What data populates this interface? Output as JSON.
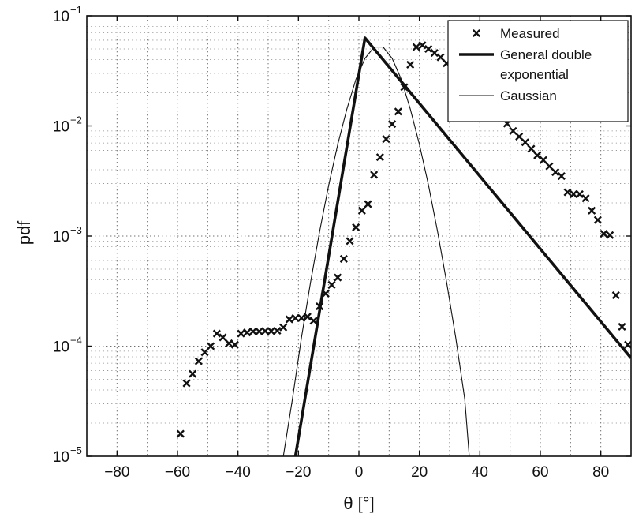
{
  "chart_data": {
    "type": "line",
    "xlabel": "θ [°]",
    "ylabel": "pdf",
    "xlim": [
      -90,
      90
    ],
    "ylim": [
      1e-05,
      0.1
    ],
    "yscale": "log",
    "grid": true,
    "legend_position": "top-right",
    "x_ticks": [
      -80,
      -60,
      -40,
      -20,
      0,
      20,
      40,
      60,
      80
    ],
    "x_tick_labels": [
      "−80",
      "−60",
      "−40",
      "−20",
      "0",
      "20",
      "40",
      "60",
      "80"
    ],
    "y_ticks": [
      1e-05,
      0.0001,
      0.001,
      0.01,
      0.1
    ],
    "y_tick_labels": [
      {
        "base": "10",
        "exp": "−5"
      },
      {
        "base": "10",
        "exp": "−4"
      },
      {
        "base": "10",
        "exp": "−3"
      },
      {
        "base": "10",
        "exp": "−2"
      },
      {
        "base": "10",
        "exp": "−1"
      }
    ],
    "legend": [
      {
        "label_lines": [
          "Measured"
        ],
        "style": "marker-x"
      },
      {
        "label_lines": [
          "General double",
          "exponential"
        ],
        "style": "thick-line"
      },
      {
        "label_lines": [
          "Gaussian"
        ],
        "style": "thin-line"
      }
    ],
    "series": [
      {
        "name": "Measured",
        "style": "marker-x",
        "color": "#111111",
        "x": [
          -59,
          -57,
          -55,
          -53,
          -51,
          -49,
          -47,
          -45,
          -43,
          -41,
          -39,
          -37,
          -35,
          -33,
          -31,
          -29,
          -27,
          -25,
          -23,
          -21,
          -19,
          -17,
          -15,
          -13,
          -11,
          -9,
          -7,
          -5,
          -3,
          -1,
          1,
          3,
          5,
          7,
          9,
          11,
          13,
          15,
          17,
          19,
          21,
          23,
          25,
          27,
          29,
          31,
          33,
          35,
          37,
          39,
          41,
          43,
          45,
          47,
          49,
          51,
          53,
          55,
          57,
          59,
          61,
          63,
          65,
          67,
          69,
          71,
          73,
          75,
          77,
          79,
          81,
          83,
          85,
          87,
          89
        ],
        "y": [
          1.6e-05,
          4.6e-05,
          5.6e-05,
          7.3e-05,
          8.8e-05,
          0.0001,
          0.00013,
          0.00012,
          0.000106,
          0.000103,
          0.00013,
          0.000133,
          0.000136,
          0.000136,
          0.000137,
          0.000137,
          0.000138,
          0.000148,
          0.000175,
          0.00018,
          0.00018,
          0.000185,
          0.00017,
          0.00023,
          0.0003,
          0.00036,
          0.00042,
          0.00062,
          0.0009,
          0.0012,
          0.0017,
          0.00195,
          0.0036,
          0.0052,
          0.0076,
          0.0104,
          0.0135,
          0.0225,
          0.036,
          0.052,
          0.054,
          0.05,
          0.046,
          0.042,
          0.037,
          0.033,
          0.03,
          0.027,
          0.025,
          0.022,
          0.019,
          0.0165,
          0.0142,
          0.012,
          0.0105,
          0.009,
          0.008,
          0.0071,
          0.0062,
          0.0054,
          0.0049,
          0.0043,
          0.0038,
          0.0035,
          0.0025,
          0.0024,
          0.0024,
          0.0022,
          0.0017,
          0.0014,
          0.00105,
          0.00102,
          0.00029,
          0.00015,
          0.000103
        ]
      },
      {
        "name": "General double exponential",
        "style": "thick-line",
        "color": "#111111",
        "x": [
          -21,
          2,
          90
        ],
        "y": [
          1e-05,
          0.063,
          7.8e-05
        ]
      },
      {
        "name": "Gaussian",
        "style": "thin-line",
        "color": "#111111",
        "x": [
          -25,
          -22,
          -19,
          -16,
          -13,
          -10,
          -7,
          -4,
          -1,
          2,
          5,
          8,
          11,
          14,
          17,
          20,
          23,
          26,
          29,
          32,
          35,
          36.5
        ],
        "y": [
          1e-05,
          3.3e-05,
          0.00012,
          0.00038,
          0.0011,
          0.0029,
          0.0068,
          0.0142,
          0.0265,
          0.041,
          0.052,
          0.052,
          0.041,
          0.0265,
          0.0142,
          0.0068,
          0.0029,
          0.0011,
          0.00038,
          0.00012,
          3.3e-05,
          1e-05
        ]
      }
    ]
  }
}
